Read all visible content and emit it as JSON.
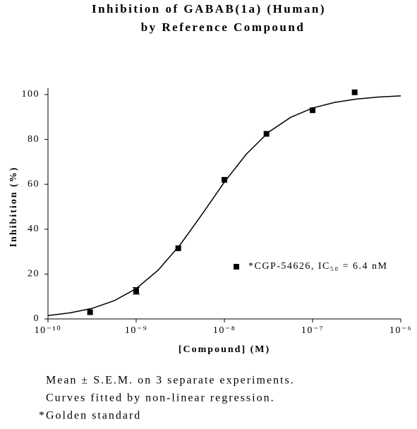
{
  "chart_data": {
    "type": "scatter",
    "title": "Inhibition of GABAB(1a) (Human)",
    "subtitle": "by Reference Compound",
    "x_label": "[Compound] (M)",
    "y_label": "Inhibition (%)",
    "xscale": "log",
    "xlim": [
      1e-10,
      1e-06
    ],
    "xticks": [
      {
        "value": 1e-10,
        "label": "10⁻¹⁰"
      },
      {
        "value": 1e-09,
        "label": "10⁻⁹"
      },
      {
        "value": 1e-08,
        "label": "10⁻⁸"
      },
      {
        "value": 1e-07,
        "label": "10⁻⁷"
      },
      {
        "value": 1e-06,
        "label": "10⁻⁶"
      }
    ],
    "ylim": [
      0,
      100
    ],
    "yticks": [
      0,
      20,
      40,
      60,
      80,
      100
    ],
    "series": [
      {
        "name": "*CGP-54626, IC₅₀ = 6.4 nM",
        "color": "#000000",
        "x": [
          3e-10,
          1e-09,
          3e-09,
          1e-08,
          3e-08,
          1e-07,
          3e-07
        ],
        "values": [
          3,
          12.5,
          31.5,
          62,
          82.5,
          93,
          101
        ],
        "errors": [
          null,
          1.5,
          null,
          null,
          null,
          null,
          null
        ]
      }
    ],
    "fit": {
      "color": "#000000",
      "x": [
        1e-10,
        1.78e-10,
        3.16e-10,
        5.62e-10,
        1e-09,
        1.78e-09,
        3.16e-09,
        5.62e-09,
        1e-08,
        1.78e-08,
        3.16e-08,
        5.62e-08,
        1e-07,
        1.78e-07,
        3.16e-07,
        5.62e-07,
        1e-06
      ],
      "values": [
        1.5,
        2.7,
        4.7,
        8.1,
        13.5,
        21.8,
        33.1,
        46.8,
        61.0,
        73.5,
        83.2,
        89.8,
        94.0,
        96.5,
        98.0,
        98.9,
        99.4
      ]
    },
    "notes": [
      "Mean ± S.E.M. on 3 separate experiments.",
      "Curves fitted by non-linear regression.",
      "*Golden standard"
    ]
  }
}
